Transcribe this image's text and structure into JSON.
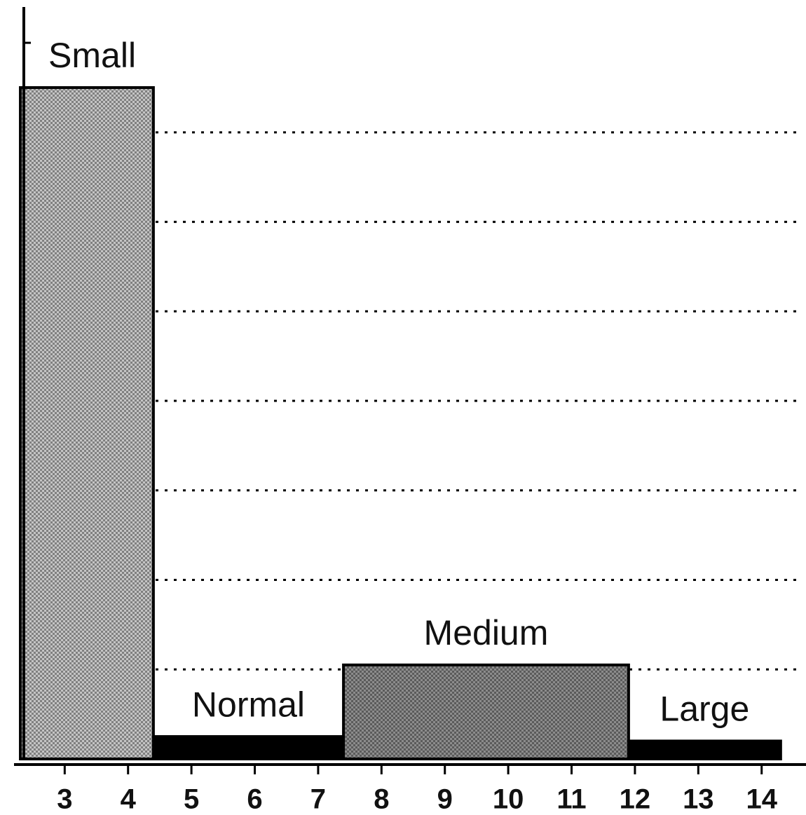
{
  "chart_data": {
    "type": "histogram",
    "bins": [
      2.3,
      4.4,
      7.4,
      11.9,
      14.3
    ],
    "values": [
      7.5,
      0.25,
      1.05,
      0.2
    ],
    "value_labels": [
      "Small",
      "Normal",
      "Medium",
      "Large"
    ],
    "colors": [
      "#c4c4c4",
      "#000000",
      "#8c8c8c",
      "#000000"
    ],
    "xlim": [
      2.2,
      14.7
    ],
    "xticks": [
      3,
      4,
      5,
      6,
      7,
      8,
      9,
      10,
      11,
      12,
      13,
      14
    ],
    "ylim": [
      0,
      8.4
    ],
    "yticks": [
      0,
      1,
      2,
      3,
      4,
      5,
      6,
      7,
      8
    ],
    "grid": true
  }
}
